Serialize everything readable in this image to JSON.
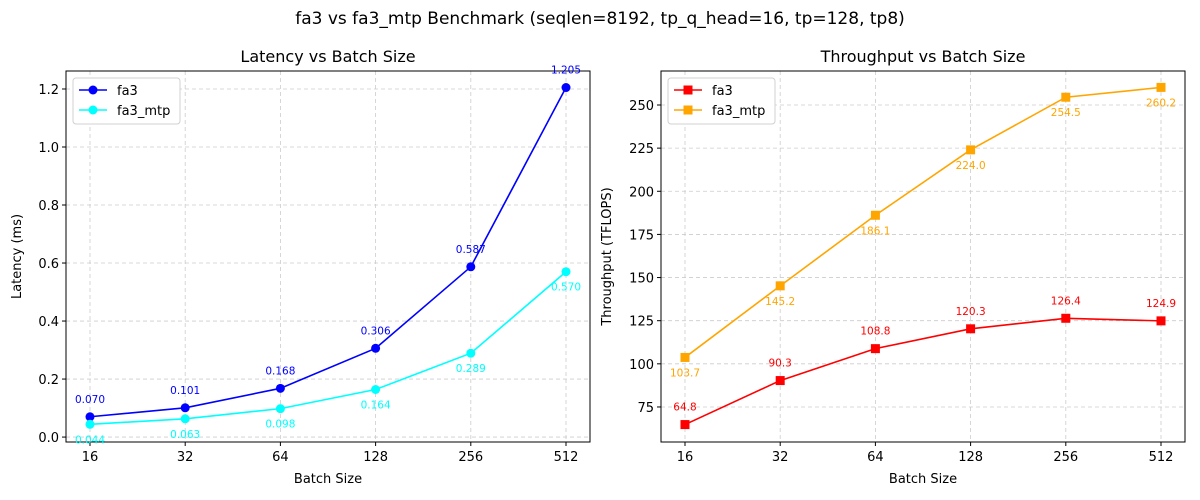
{
  "suptitle": "fa3 vs fa3_mtp Benchmark (seqlen=8192, tp_q_head=16, tp=128, tp8)",
  "chart_data": [
    {
      "type": "line",
      "title": "Latency vs Batch Size",
      "xlabel": "Batch Size",
      "ylabel": "Latency (ms)",
      "xscale": "log2",
      "x": [
        16,
        32,
        64,
        128,
        256,
        512
      ],
      "xticks": [
        "16",
        "32",
        "64",
        "128",
        "256",
        "512"
      ],
      "yticks": [
        "0.0",
        "0.2",
        "0.4",
        "0.6",
        "0.8",
        "1.0",
        "1.2"
      ],
      "ylim": [
        -0.017,
        1.262
      ],
      "grid": true,
      "legend": "top-left",
      "series": [
        {
          "name": "fa3",
          "color": "#0000ff",
          "marker": "circle",
          "values": [
            0.07,
            0.101,
            0.168,
            0.306,
            0.587,
            1.205
          ],
          "labels": [
            "0.070",
            "0.101",
            "0.168",
            "0.306",
            "0.587",
            "1.205"
          ],
          "label_pos": "above"
        },
        {
          "name": "fa3_mtp",
          "color": "#00ffff",
          "marker": "circle",
          "values": [
            0.044,
            0.063,
            0.098,
            0.164,
            0.289,
            0.57
          ],
          "labels": [
            "0.044",
            "0.063",
            "0.098",
            "0.164",
            "0.289",
            "0.570"
          ],
          "label_pos": "below"
        }
      ]
    },
    {
      "type": "line",
      "title": "Throughput vs Batch Size",
      "xlabel": "Batch Size",
      "ylabel": "Throughput (TFLOPS)",
      "xscale": "log2",
      "x": [
        16,
        32,
        64,
        128,
        256,
        512
      ],
      "xticks": [
        "16",
        "32",
        "64",
        "128",
        "256",
        "512"
      ],
      "yticks": [
        "75",
        "100",
        "125",
        "150",
        "175",
        "200",
        "225",
        "250"
      ],
      "ylim": [
        54.7,
        269.7
      ],
      "grid": true,
      "legend": "top-left",
      "series": [
        {
          "name": "fa3",
          "color": "#ff0000",
          "marker": "square",
          "values": [
            64.8,
            90.3,
            108.8,
            120.3,
            126.4,
            124.9
          ],
          "labels": [
            "64.8",
            "90.3",
            "108.8",
            "120.3",
            "126.4",
            "124.9"
          ],
          "label_pos": "above"
        },
        {
          "name": "fa3_mtp",
          "color": "#ffa500",
          "marker": "square",
          "values": [
            103.7,
            145.2,
            186.1,
            224.0,
            254.5,
            260.2
          ],
          "labels": [
            "103.7",
            "145.2",
            "186.1",
            "224.0",
            "254.5",
            "260.2"
          ],
          "label_pos": "below"
        }
      ]
    }
  ]
}
